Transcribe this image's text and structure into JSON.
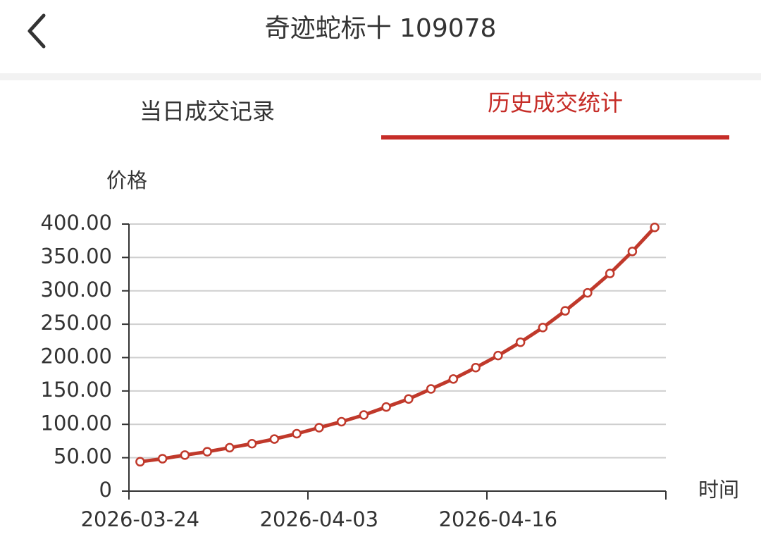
{
  "header": {
    "title": "奇迹蛇标十 109078"
  },
  "tabs": [
    {
      "label": "当日成交记录"
    },
    {
      "label": "历史成交统计"
    }
  ],
  "chart_data": {
    "type": "line",
    "y_label": "价格",
    "x_label": "时间",
    "categories": [
      "2026-03-24",
      null,
      null,
      null,
      null,
      null,
      null,
      null,
      "2026-04-03",
      null,
      null,
      null,
      null,
      null,
      null,
      null,
      "2026-04-16",
      null,
      null,
      null,
      null,
      null,
      null,
      null
    ],
    "series": [
      {
        "color": "#c0392b",
        "values": [
          44,
          48.5,
          54,
          59,
          65,
          71,
          78,
          86,
          95,
          104,
          114,
          126,
          138,
          153,
          168,
          185,
          203,
          223,
          245,
          270,
          297,
          326,
          359,
          395
        ]
      }
    ],
    "ylim": [
      0,
      400
    ],
    "yticks": [
      0,
      {
        "value": 50,
        "label": "50.00"
      },
      {
        "value": 100,
        "label": "100.00"
      },
      {
        "value": 150,
        "label": "150.00"
      },
      {
        "value": 200,
        "label": "200.00"
      },
      {
        "value": 250,
        "label": "250.00"
      },
      {
        "value": 300,
        "label": "300.00"
      },
      {
        "value": 350,
        "label": "350.00"
      },
      {
        "value": 400,
        "label": "400.00"
      }
    ],
    "grid": true
  }
}
